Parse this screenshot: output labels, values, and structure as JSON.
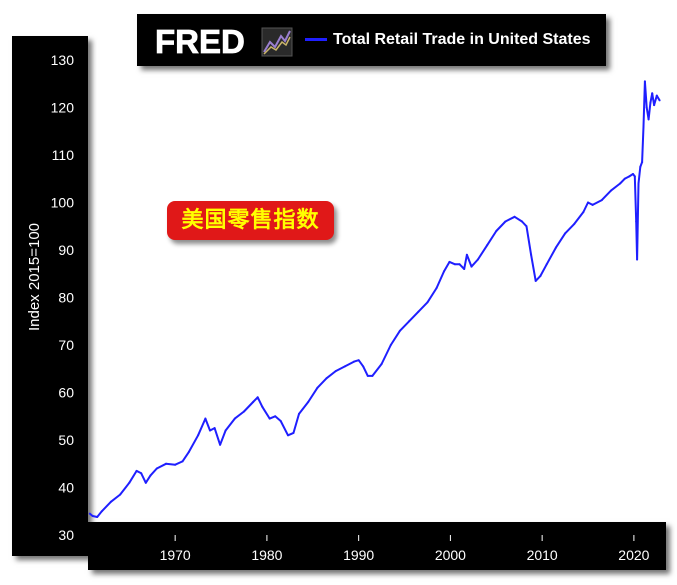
{
  "header": {
    "logo_text": "FRED",
    "legend_label": "Total Retail Trade in United States",
    "legend_color": "#1f1fff"
  },
  "overlay_label": "美国零售指数",
  "colors": {
    "panel": "#000000",
    "line": "#1f1fff",
    "overlay_bg": "#e01818",
    "overlay_text": "#ffff00"
  },
  "chart_data": {
    "type": "line",
    "title": "",
    "xlabel": "",
    "ylabel": "Index 2015=100",
    "xlim": [
      1960.5,
      2023.5
    ],
    "ylim": [
      30,
      130
    ],
    "x_ticks": [
      1970,
      1980,
      1990,
      2000,
      2010,
      2020
    ],
    "y_ticks": [
      30,
      40,
      50,
      60,
      70,
      80,
      90,
      100,
      110,
      120,
      130
    ],
    "grid": false,
    "legend_position": "top",
    "series": [
      {
        "name": "Total Retail Trade in United States",
        "color": "#1f1fff",
        "x": [
          1960.7,
          1961.0,
          1961.5,
          1962.0,
          1963.0,
          1964.0,
          1965.0,
          1965.8,
          1966.3,
          1966.8,
          1967.3,
          1968.0,
          1969.0,
          1970.0,
          1970.8,
          1971.5,
          1972.5,
          1973.3,
          1973.8,
          1974.3,
          1974.9,
          1975.5,
          1976.5,
          1977.5,
          1978.5,
          1979.0,
          1979.5,
          1980.3,
          1980.9,
          1981.5,
          1982.3,
          1982.9,
          1983.5,
          1984.5,
          1985.5,
          1986.5,
          1987.5,
          1988.5,
          1989.5,
          1990.0,
          1990.5,
          1991.0,
          1991.5,
          1992.5,
          1993.5,
          1994.5,
          1995.5,
          1996.5,
          1997.5,
          1998.5,
          1999.3,
          1999.9,
          2000.5,
          2001.0,
          2001.5,
          2001.8,
          2002.3,
          2003.0,
          2004.0,
          2005.0,
          2006.0,
          2007.0,
          2007.8,
          2008.3,
          2008.8,
          2009.3,
          2009.8,
          2010.5,
          2011.5,
          2012.5,
          2013.5,
          2014.5,
          2015.0,
          2015.5,
          2016.5,
          2017.5,
          2018.5,
          2019.0,
          2019.5,
          2019.9,
          2020.1,
          2020.25,
          2020.35,
          2020.5,
          2020.7,
          2020.9,
          2021.05,
          2021.2,
          2021.4,
          2021.6,
          2021.8,
          2022.0,
          2022.2,
          2022.5,
          2022.8
        ],
        "values": [
          34.5,
          34.0,
          33.8,
          35.0,
          37.0,
          38.5,
          41.0,
          43.5,
          43.0,
          41.0,
          42.5,
          44.0,
          45.0,
          44.8,
          45.5,
          47.5,
          51.0,
          54.5,
          52.0,
          52.5,
          49.0,
          52.0,
          54.5,
          56.0,
          58.0,
          59.0,
          57.0,
          54.5,
          55.0,
          54.0,
          51.0,
          51.5,
          55.5,
          58.0,
          61.0,
          63.0,
          64.5,
          65.5,
          66.5,
          66.8,
          65.5,
          63.5,
          63.5,
          66.0,
          70.0,
          73.0,
          75.0,
          77.0,
          79.0,
          82.0,
          85.5,
          87.5,
          87.0,
          87.0,
          86.0,
          89.0,
          86.5,
          88.0,
          91.0,
          94.0,
          96.0,
          97.0,
          96.0,
          95.0,
          89.0,
          83.5,
          84.5,
          87.0,
          90.5,
          93.5,
          95.5,
          98.0,
          100.0,
          99.5,
          100.5,
          102.5,
          104.0,
          105.0,
          105.5,
          106.0,
          105.5,
          96.0,
          88.0,
          104.0,
          107.5,
          108.5,
          116.0,
          125.5,
          120.0,
          117.5,
          121.0,
          123.0,
          120.5,
          122.5,
          121.5
        ]
      }
    ]
  }
}
